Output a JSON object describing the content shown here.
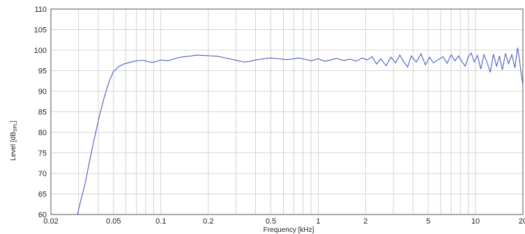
{
  "chart_data": {
    "type": "line",
    "xlabel": "Frequency [kHz]",
    "ylabel_main": "Level [dB",
    "ylabel_sub": "SPL",
    "ylabel_close": "]",
    "x_scale": "log",
    "xlim": [
      0.02,
      20
    ],
    "ylim": [
      60,
      110
    ],
    "grid": true,
    "line_color": "#4a5bc4",
    "grid_color": "#c8c8c8",
    "x_ticks": [
      {
        "value": 0.02,
        "label": "0.02"
      },
      {
        "value": 0.05,
        "label": "0.05"
      },
      {
        "value": 0.1,
        "label": "0.1"
      },
      {
        "value": 0.2,
        "label": "0.2"
      },
      {
        "value": 0.5,
        "label": "0.5"
      },
      {
        "value": 1,
        "label": "1"
      },
      {
        "value": 2,
        "label": "2"
      },
      {
        "value": 5,
        "label": "5"
      },
      {
        "value": 10,
        "label": "10"
      },
      {
        "value": 20,
        "label": "20"
      }
    ],
    "y_ticks": [
      60,
      65,
      70,
      75,
      80,
      85,
      90,
      95,
      100,
      105,
      110
    ],
    "series": [
      {
        "x": [
          0.0295,
          0.031,
          0.033,
          0.035,
          0.038,
          0.041,
          0.044,
          0.047,
          0.05,
          0.054,
          0.058,
          0.063,
          0.068,
          0.073,
          0.078,
          0.083,
          0.088,
          0.093,
          0.1,
          0.11,
          0.12,
          0.13,
          0.14,
          0.15,
          0.17,
          0.19,
          0.21,
          0.23,
          0.25,
          0.28,
          0.31,
          0.34,
          0.37,
          0.4,
          0.45,
          0.5,
          0.56,
          0.62,
          0.68,
          0.75,
          0.82,
          0.9,
          1.0,
          1.1,
          1.2,
          1.3,
          1.45,
          1.6,
          1.75,
          1.9,
          2.05,
          2.2,
          2.35,
          2.5,
          2.7,
          2.9,
          3.1,
          3.3,
          3.5,
          3.7,
          3.9,
          4.2,
          4.5,
          4.8,
          5.1,
          5.4,
          5.8,
          6.2,
          6.6,
          7.0,
          7.4,
          7.8,
          8.2,
          8.6,
          9.0,
          9.4,
          9.8,
          10.3,
          10.8,
          11.3,
          11.8,
          12.4,
          13.0,
          13.6,
          14.2,
          14.8,
          15.5,
          16.2,
          17.0,
          17.8,
          18.5,
          19.0,
          19.5,
          20.0
        ],
        "y": [
          60,
          63.5,
          67.5,
          72.5,
          79,
          84.5,
          89,
          92.5,
          94.8,
          96,
          96.6,
          97,
          97.3,
          97.5,
          97.5,
          97.2,
          97.0,
          97.2,
          97.6,
          97.4,
          97.8,
          98.2,
          98.4,
          98.5,
          98.8,
          98.7,
          98.6,
          98.5,
          98.2,
          97.8,
          97.4,
          97.1,
          97.3,
          97.6,
          97.9,
          98.1,
          97.9,
          97.7,
          97.8,
          98.1,
          97.8,
          97.4,
          97.9,
          97.3,
          97.6,
          98.0,
          97.5,
          97.8,
          97.3,
          98.1,
          97.6,
          98.4,
          96.6,
          97.9,
          96.2,
          98.3,
          96.9,
          98.8,
          97.2,
          95.9,
          98.6,
          97.1,
          99.1,
          96.4,
          98.3,
          96.9,
          97.7,
          98.4,
          96.8,
          98.9,
          97.4,
          98.6,
          97.2,
          96.1,
          98.4,
          99.3,
          97.1,
          98.7,
          95.4,
          98.9,
          97.2,
          94.6,
          99.0,
          96.1,
          98.6,
          95.2,
          99.2,
          96.7,
          98.9,
          95.7,
          100.6,
          97.9,
          94.3,
          91.5
        ]
      }
    ]
  }
}
